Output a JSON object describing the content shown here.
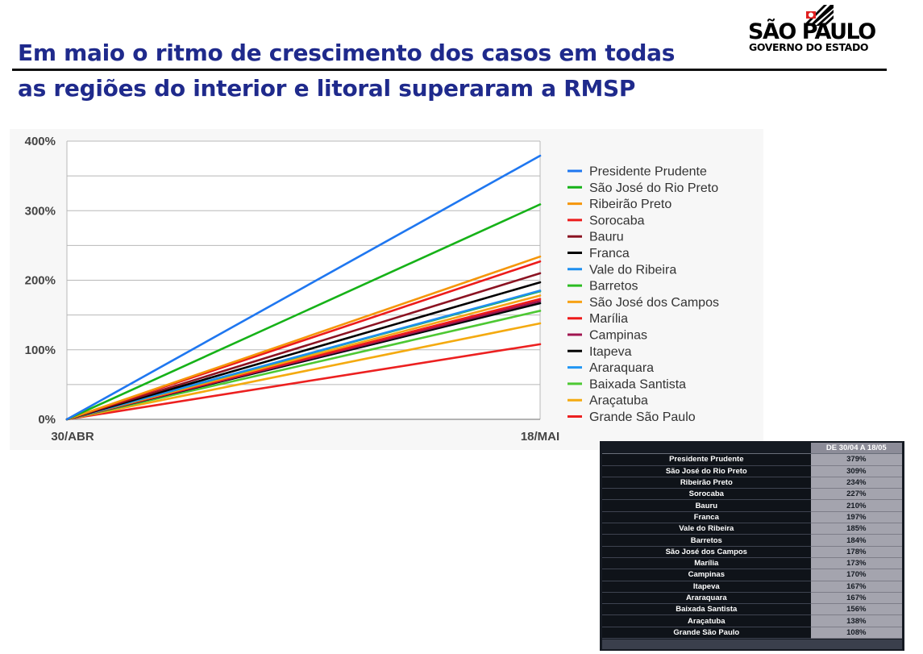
{
  "header": {
    "title_line1": "Em maio o ritmo de crescimento dos casos em todas",
    "title_line2": "as regiões do interior e litoral superaram a RMSP",
    "logo_main": "SÃO PAULO",
    "logo_sub": "GOVERNO DO ESTADO"
  },
  "chart_data": {
    "type": "line",
    "x": [
      "30/ABR",
      "18/MAI"
    ],
    "ylim": [
      0,
      400
    ],
    "yticks": [
      0,
      100,
      200,
      300,
      400
    ],
    "ytick_labels": [
      "0%",
      "100%",
      "200%",
      "300%",
      "400%"
    ],
    "grid": true,
    "legend": "right",
    "series": [
      {
        "name": "Presidente Prudente",
        "values": [
          0,
          379
        ],
        "color": "#1f77f0"
      },
      {
        "name": "São José do Rio Preto",
        "values": [
          0,
          309
        ],
        "color": "#16b218"
      },
      {
        "name": "Ribeirão Preto",
        "values": [
          0,
          234
        ],
        "color": "#f5960a"
      },
      {
        "name": "Sorocaba",
        "values": [
          0,
          227
        ],
        "color": "#ec1c1c"
      },
      {
        "name": "Bauru",
        "values": [
          0,
          210
        ],
        "color": "#8b1322"
      },
      {
        "name": "Franca",
        "values": [
          0,
          197
        ],
        "color": "#000000"
      },
      {
        "name": "Vale do Ribeira",
        "values": [
          0,
          185
        ],
        "color": "#1e8fef"
      },
      {
        "name": "Barretos",
        "values": [
          0,
          184
        ],
        "color": "#2cbc22"
      },
      {
        "name": "São José dos Campos",
        "values": [
          0,
          178
        ],
        "color": "#f7a215"
      },
      {
        "name": "Marília",
        "values": [
          0,
          173
        ],
        "color": "#ee1a1a"
      },
      {
        "name": "Campinas",
        "values": [
          0,
          170
        ],
        "color": "#a01550"
      },
      {
        "name": "Itapeva",
        "values": [
          0,
          167
        ],
        "color": "#050505"
      },
      {
        "name": "Araraquara",
        "values": [
          0,
          167
        ],
        "color": "#2196f3"
      },
      {
        "name": "Baixada Santista",
        "values": [
          0,
          156
        ],
        "color": "#4dc833"
      },
      {
        "name": "Araçatuba",
        "values": [
          0,
          138
        ],
        "color": "#f4aa10"
      },
      {
        "name": "Grande São Paulo",
        "values": [
          0,
          108
        ],
        "color": "#ec2020"
      }
    ]
  },
  "table": {
    "header": "DE 30/04 A 18/05",
    "rows": [
      {
        "name": "Presidente Prudente",
        "value": "379%"
      },
      {
        "name": "São José do Rio Preto",
        "value": "309%"
      },
      {
        "name": "Ribeirão Preto",
        "value": "234%"
      },
      {
        "name": "Sorocaba",
        "value": "227%"
      },
      {
        "name": "Bauru",
        "value": "210%"
      },
      {
        "name": "Franca",
        "value": "197%"
      },
      {
        "name": "Vale do Ribeira",
        "value": "185%"
      },
      {
        "name": "Barretos",
        "value": "184%"
      },
      {
        "name": "São José dos Campos",
        "value": "178%"
      },
      {
        "name": "Marília",
        "value": "173%"
      },
      {
        "name": "Campinas",
        "value": "170%"
      },
      {
        "name": "Itapeva",
        "value": "167%"
      },
      {
        "name": "Araraquara",
        "value": "167%"
      },
      {
        "name": "Baixada Santista",
        "value": "156%"
      },
      {
        "name": "Araçatuba",
        "value": "138%"
      },
      {
        "name": "Grande São Paulo",
        "value": "108%"
      }
    ]
  }
}
